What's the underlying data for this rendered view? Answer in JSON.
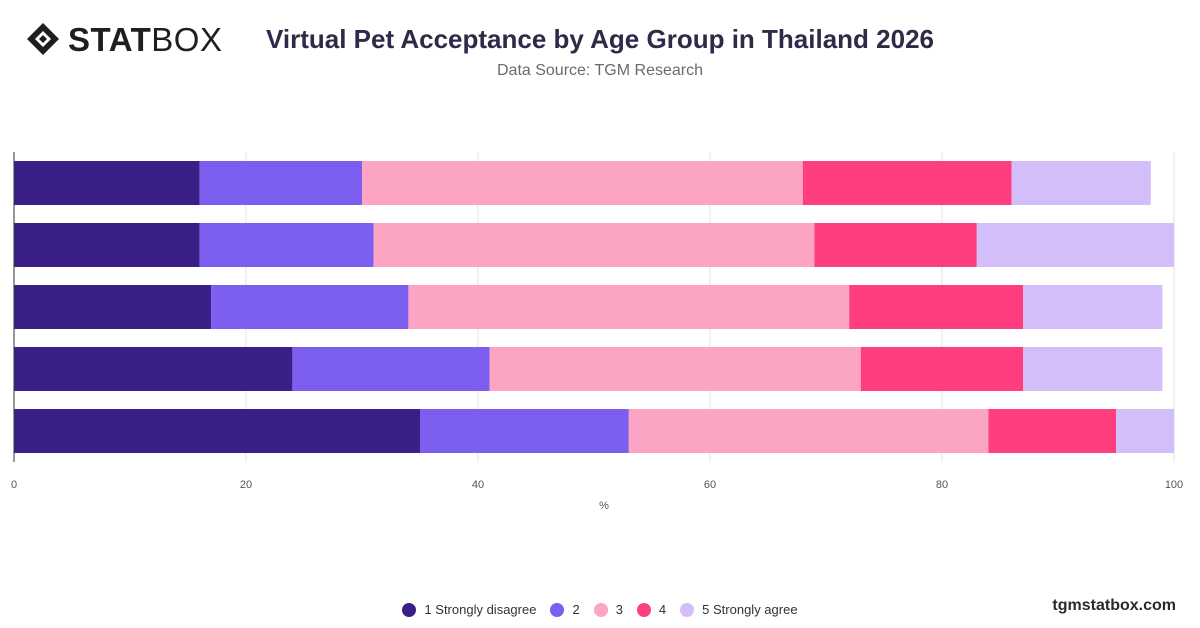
{
  "header": {
    "logo_bold": "STAT",
    "logo_light": "BOX",
    "title": "Virtual Pet Acceptance by Age Group in Thailand 2026",
    "subtitle": "Data Source: TGM Research"
  },
  "watermark": "tgmstatbox.com",
  "colors": {
    "s1": "#3a1f87",
    "s2": "#7d5ff0",
    "s3": "#fba4c3",
    "s4": "#ff3e82",
    "s5": "#d4bef9",
    "grid": "#e3e3e3",
    "axis": "#333333"
  },
  "chart_data": {
    "type": "bar",
    "orientation": "horizontal",
    "stacked": true,
    "title": "Virtual Pet Acceptance by Age Group in Thailand 2026",
    "xlabel": "%",
    "ylabel": "",
    "xlim": [
      0,
      100
    ],
    "xticks": [
      0,
      20,
      40,
      60,
      80,
      100
    ],
    "categories": [
      "",
      "",
      "",
      "",
      ""
    ],
    "grid": true,
    "legend_position": "bottom",
    "series": [
      {
        "name": "1 Strongly disagree",
        "color": "#3a1f87",
        "values": [
          16,
          16,
          17,
          24,
          35
        ]
      },
      {
        "name": "2",
        "color": "#7d5ff0",
        "values": [
          14,
          15,
          17,
          17,
          18
        ]
      },
      {
        "name": "3",
        "color": "#fba4c3",
        "values": [
          38,
          38,
          38,
          32,
          31
        ]
      },
      {
        "name": "4",
        "color": "#ff3e82",
        "values": [
          18,
          14,
          15,
          14,
          11
        ]
      },
      {
        "name": "5 Strongly agree",
        "color": "#d4bef9",
        "values": [
          12,
          17,
          12,
          12,
          5
        ]
      }
    ]
  }
}
